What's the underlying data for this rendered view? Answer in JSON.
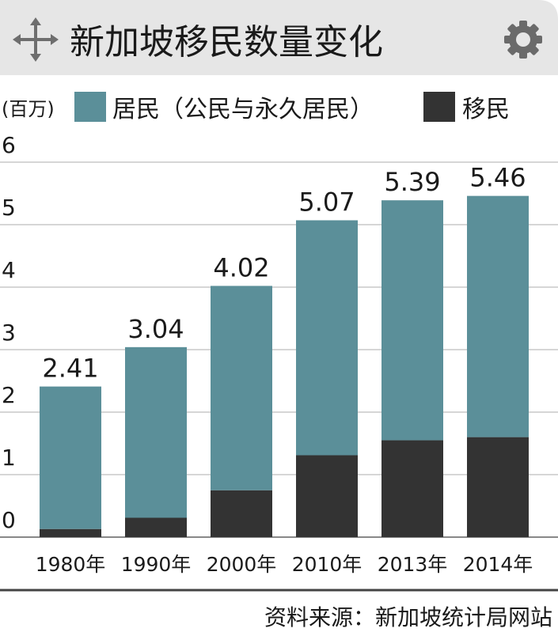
{
  "header": {
    "title": "新加坡移民数量变化",
    "move_icon": "move-arrows-icon",
    "settings_icon": "gear-icon"
  },
  "colors": {
    "residents": "#5b8f99",
    "immigrants": "#333333",
    "header_bg": "#e6e6e6"
  },
  "source": "资料来源：新加坡统计局网站",
  "chart_data": {
    "type": "bar",
    "stacked": true,
    "title": "新加坡移民数量变化",
    "unit_label": "(百万)",
    "categories": [
      "1980年",
      "1990年",
      "2000年",
      "2010年",
      "2013年",
      "2014年"
    ],
    "series": [
      {
        "name": "移民",
        "values": [
          0.13,
          0.31,
          0.75,
          1.31,
          1.55,
          1.6
        ]
      },
      {
        "name": "居民（公民与永久居民）",
        "values": [
          2.28,
          2.73,
          3.27,
          3.76,
          3.84,
          3.86
        ]
      }
    ],
    "totals": [
      "2.41",
      "3.04",
      "4.02",
      "5.07",
      "5.39",
      "5.46"
    ],
    "yticks": [
      "0",
      "1",
      "2",
      "3",
      "4",
      "5",
      "6"
    ],
    "ylim": [
      0,
      6
    ],
    "grid": true,
    "legend_position": "top"
  }
}
